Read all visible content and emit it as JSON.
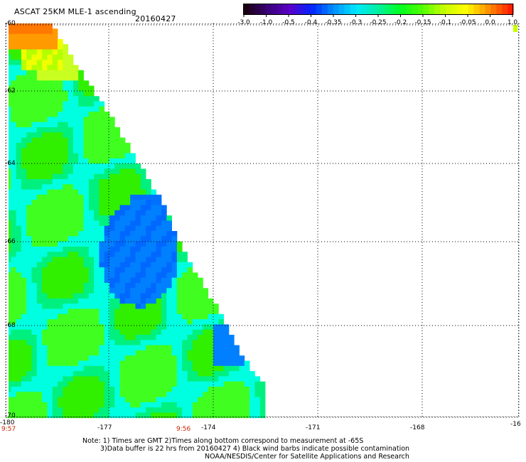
{
  "header": {
    "title": "ASCAT 25KM MLE-1 ascending",
    "date": "20160427"
  },
  "colorbar": {
    "labels": [
      "-3.0",
      "-1.0",
      "-0.5",
      "-0.4",
      "-0.35",
      "-0.3",
      "-0.25",
      "-0.2",
      "-0.15",
      "-0.1",
      "-0.05",
      "0.0",
      "1.0"
    ],
    "stops": [
      "#1a0010",
      "#3a0078",
      "#5a00c8",
      "#0024ff",
      "#0090ff",
      "#00e8ff",
      "#00f0a0",
      "#00ff20",
      "#50ff00",
      "#c8ff00",
      "#ffff00",
      "#ff9000",
      "#ff2000"
    ]
  },
  "map": {
    "lon_ticks": [
      "-180",
      "-177",
      "-174",
      "-171",
      "-168",
      "-16"
    ],
    "lat_ticks": [
      "-60",
      "-62",
      "-64",
      "-66",
      "-68",
      "-70"
    ],
    "time_labels": [
      "9:57",
      "9:56"
    ]
  },
  "notes": {
    "line1": "Note: 1) Times are GMT 2)Times along bottom correspond to measurement at -65S",
    "line2": "3)Data buffer is 22 hrs from 20160427 4) Black wind barbs indicate possible contamination",
    "line3": "NOAA/NESDIS/Center for Satellite Applications and Research"
  }
}
